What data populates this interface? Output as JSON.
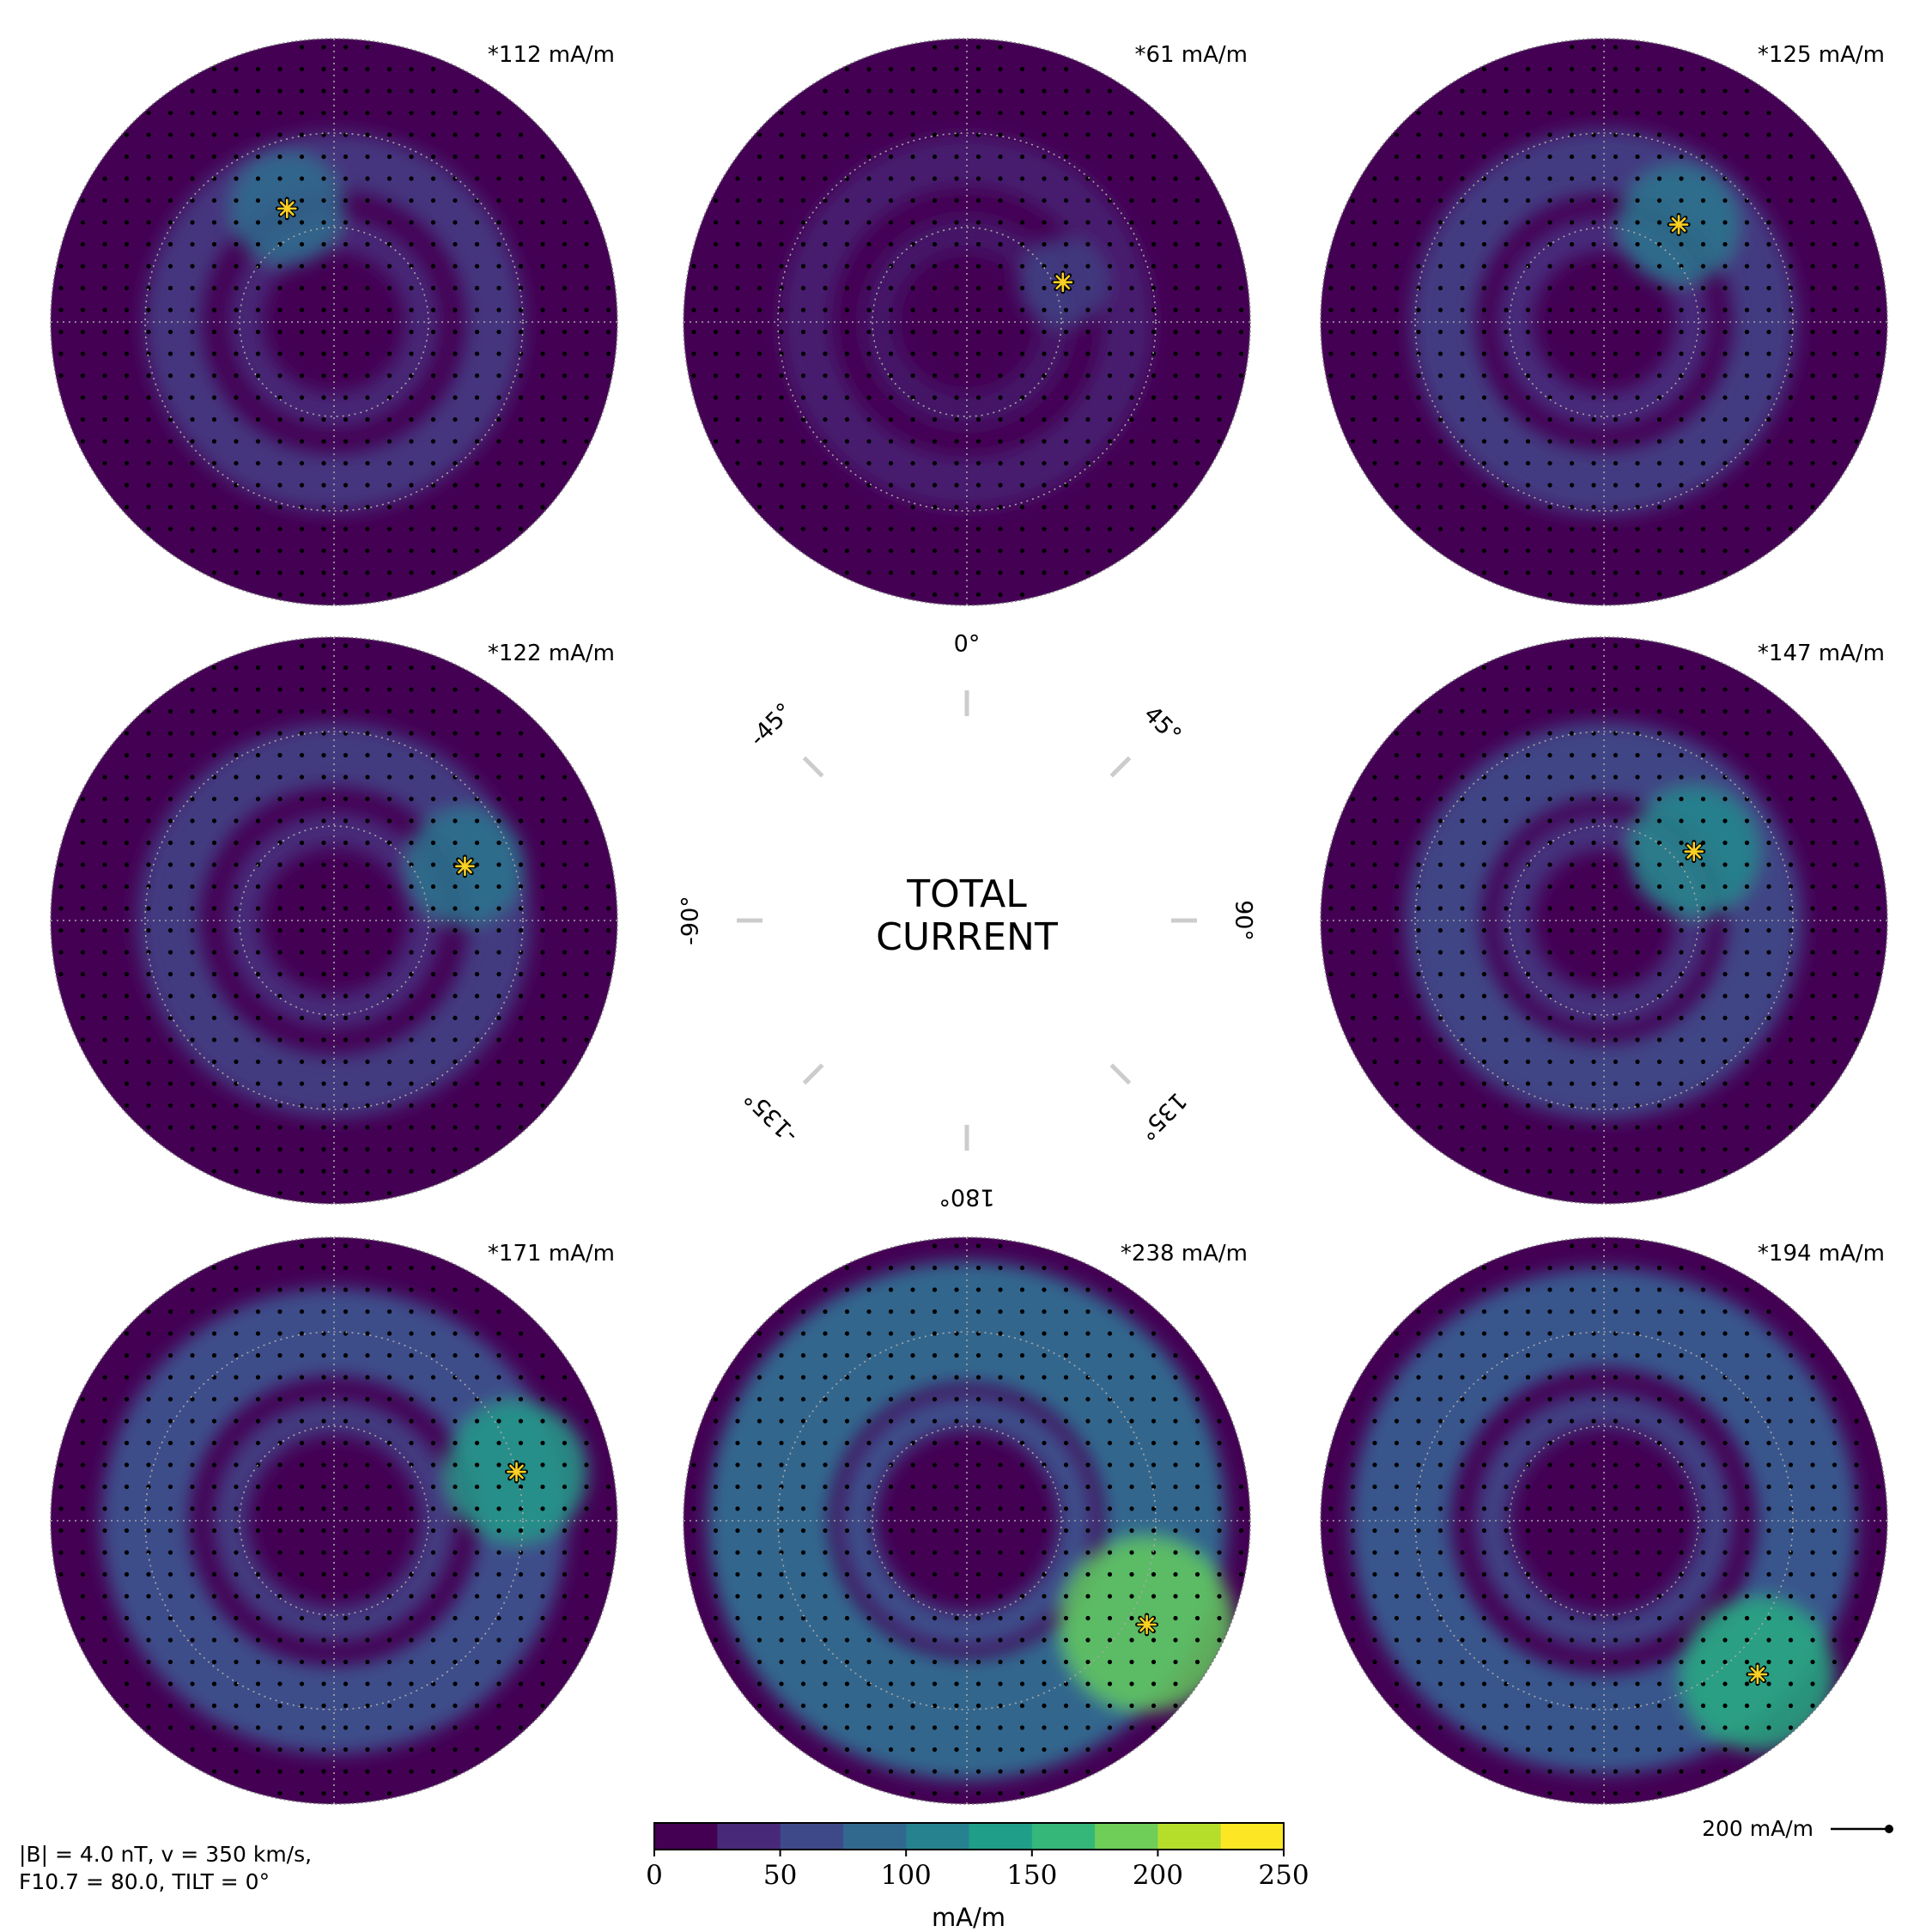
{
  "chart_data": {
    "type": "heatmap",
    "title": "TOTAL\nCURRENT",
    "title_lines": [
      "TOTAL",
      "CURRENT"
    ],
    "colormap": "viridis",
    "colorbar": {
      "min": 0,
      "max": 250,
      "step": 25,
      "ticks": [
        "0",
        "50",
        "100",
        "150",
        "200",
        "250"
      ],
      "label": "mA/m"
    },
    "dial_labels": [
      {
        "angle": 0,
        "text": "0°"
      },
      {
        "angle": 45,
        "text": "45°"
      },
      {
        "angle": 90,
        "text": "90°"
      },
      {
        "angle": 135,
        "text": "135°"
      },
      {
        "angle": 180,
        "text": "180°"
      },
      {
        "angle": -135,
        "text": "-135°"
      },
      {
        "angle": -90,
        "text": "-90°"
      },
      {
        "angle": -45,
        "text": "-45°"
      }
    ],
    "panels": [
      {
        "clock_angle": -45,
        "max_label": "*112 mA/m",
        "max_value": 112,
        "peak_mlt": 22.5,
        "peak_mlat": 77
      },
      {
        "clock_angle": 0,
        "max_label": "*61 mA/m",
        "max_value": 61,
        "peak_mlt": 4.5,
        "peak_mlat": 79
      },
      {
        "clock_angle": 45,
        "max_label": "*125 mA/m",
        "max_value": 125,
        "peak_mlt": 2.5,
        "peak_mlat": 77
      },
      {
        "clock_angle": -90,
        "max_label": "*122 mA/m",
        "max_value": 122,
        "peak_mlt": 4.5,
        "peak_mlat": 75
      },
      {
        "clock_angle": 90,
        "max_label": "*147 mA/m",
        "max_value": 147,
        "peak_mlt": 3.5,
        "peak_mlat": 78
      },
      {
        "clock_angle": -135,
        "max_label": "*171 mA/m",
        "max_value": 171,
        "peak_mlt": 5,
        "peak_mlat": 70
      },
      {
        "clock_angle": 180,
        "max_label": "*238 mA/m",
        "max_value": 238,
        "peak_mlt": 8,
        "peak_mlat": 68
      },
      {
        "clock_angle": 135,
        "max_label": "*194 mA/m",
        "max_value": 194,
        "peak_mlt": 9,
        "peak_mlat": 67
      }
    ],
    "grid": {
      "mlat_circles": [
        70,
        80
      ],
      "mlat_min": 60
    },
    "scale_arrow": {
      "label": "200 mA/m",
      "value": 200
    },
    "conditions": {
      "line1": "|B| = 4.0 nT, v = 350 km/s,",
      "line2": "F10.7 = 80.0, TILT = 0°"
    }
  },
  "colors": {
    "viridis": [
      "#440154",
      "#472c7a",
      "#3b518b",
      "#2c718e",
      "#21908d",
      "#27ad81",
      "#5cc863",
      "#aadc32",
      "#fde725"
    ],
    "cb_bins": [
      "#440154",
      "#482878",
      "#3e4989",
      "#31688e",
      "#26828e",
      "#1f9e89",
      "#35b779",
      "#6ece58",
      "#b5de2b",
      "#fde725"
    ],
    "background_disk": "#440154",
    "peak_marker": "#fbd024",
    "dial_tick": "#cccccc"
  }
}
